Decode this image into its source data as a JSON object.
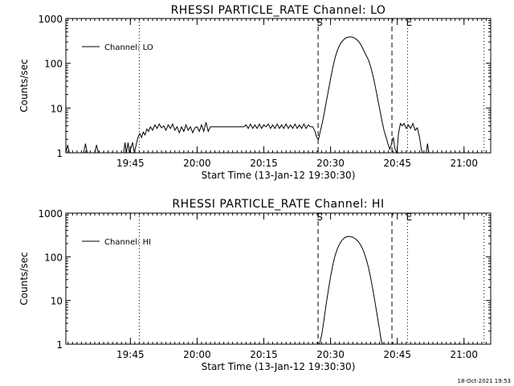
{
  "chart_data": [
    {
      "type": "line",
      "title": "RHESSI PARTICLE_RATE Channel: LO",
      "xlabel": "Start Time (13-Jan-12 19:30:30)",
      "ylabel": "Counts/sec",
      "yscale": "log",
      "ylim": [
        1,
        1000
      ],
      "ytick_labels": [
        "1",
        "10",
        "100",
        "1000"
      ],
      "xlim_minutes": [
        0,
        95.5
      ],
      "xtick_labels": [
        "19:45",
        "20:00",
        "20:15",
        "20:30",
        "20:45",
        "21:00"
      ],
      "legend": {
        "position": "top-left",
        "label": "Channel: LO"
      },
      "markers": [
        {
          "label": "S",
          "style": "dashed",
          "minute": 56.7
        },
        {
          "label": "",
          "style": "dashed",
          "minute": 73.3
        },
        {
          "label": "E",
          "style": "dotted",
          "minute": 76.8
        },
        {
          "label": "",
          "style": "dotted",
          "minute": 16.5
        },
        {
          "label": "",
          "style": "dotted",
          "minute": 94.0
        }
      ],
      "series": [
        {
          "name": "Channel: LO",
          "points": [
            [
              0.0,
              1
            ],
            [
              0.4,
              1.5
            ],
            [
              0.8,
              1
            ],
            [
              4.0,
              1
            ],
            [
              4.4,
              1.6
            ],
            [
              4.8,
              1
            ],
            [
              6.5,
              1
            ],
            [
              6.9,
              1.5
            ],
            [
              7.3,
              1
            ],
            [
              13.0,
              1
            ],
            [
              13.3,
              1.7
            ],
            [
              13.6,
              1
            ],
            [
              14.0,
              1.7
            ],
            [
              14.3,
              1
            ],
            [
              15.0,
              1.7
            ],
            [
              15.4,
              1
            ],
            [
              15.8,
              1.5
            ],
            [
              16.2,
              2.2
            ],
            [
              16.6,
              2.7
            ],
            [
              17.0,
              2.2
            ],
            [
              17.4,
              2.9
            ],
            [
              17.8,
              2.5
            ],
            [
              18.2,
              3.4
            ],
            [
              18.6,
              3.0
            ],
            [
              19.0,
              3.8
            ],
            [
              19.5,
              3.2
            ],
            [
              20.0,
              4.2
            ],
            [
              20.5,
              3.5
            ],
            [
              21.0,
              4.4
            ],
            [
              21.5,
              3.6
            ],
            [
              22.0,
              4.0
            ],
            [
              22.5,
              3.2
            ],
            [
              23.0,
              4.2
            ],
            [
              23.5,
              3.5
            ],
            [
              24.0,
              4.4
            ],
            [
              24.5,
              3.2
            ],
            [
              25.0,
              3.8
            ],
            [
              25.5,
              2.8
            ],
            [
              26.0,
              3.8
            ],
            [
              26.5,
              3.0
            ],
            [
              27.0,
              4.2
            ],
            [
              27.5,
              3.2
            ],
            [
              28.0,
              3.8
            ],
            [
              28.5,
              2.8
            ],
            [
              29.0,
              3.6
            ],
            [
              29.5,
              3.8
            ],
            [
              30.0,
              3.0
            ],
            [
              30.5,
              4.2
            ],
            [
              31.0,
              3.0
            ],
            [
              31.5,
              4.8
            ],
            [
              32.0,
              3.0
            ],
            [
              32.5,
              3.8
            ],
            [
              33.0,
              3.8
            ],
            [
              34.0,
              3.8
            ],
            [
              35.0,
              3.8
            ],
            [
              36.0,
              3.8
            ],
            [
              37.0,
              3.8
            ],
            [
              38.0,
              3.8
            ],
            [
              39.0,
              3.8
            ],
            [
              40.0,
              3.8
            ],
            [
              40.5,
              4.2
            ],
            [
              41.0,
              3.5
            ],
            [
              41.5,
              4.4
            ],
            [
              42.0,
              3.5
            ],
            [
              42.5,
              4.2
            ],
            [
              43.0,
              3.5
            ],
            [
              43.5,
              4.4
            ],
            [
              44.0,
              3.5
            ],
            [
              44.5,
              4.2
            ],
            [
              45.0,
              3.8
            ],
            [
              45.5,
              4.4
            ],
            [
              46.0,
              3.5
            ],
            [
              46.5,
              4.2
            ],
            [
              47.0,
              3.5
            ],
            [
              47.5,
              4.4
            ],
            [
              48.0,
              3.5
            ],
            [
              48.5,
              4.2
            ],
            [
              49.0,
              3.5
            ],
            [
              49.5,
              4.4
            ],
            [
              50.0,
              3.5
            ],
            [
              50.5,
              4.2
            ],
            [
              51.0,
              3.5
            ],
            [
              51.5,
              4.4
            ],
            [
              52.0,
              3.5
            ],
            [
              52.5,
              4.2
            ],
            [
              53.0,
              3.5
            ],
            [
              53.5,
              4.4
            ],
            [
              54.0,
              3.5
            ],
            [
              54.5,
              4.2
            ],
            [
              55.0,
              3.8
            ],
            [
              55.5,
              3.8
            ],
            [
              56.0,
              3.0
            ],
            [
              56.4,
              2.2
            ],
            [
              56.8,
              2.0
            ],
            [
              57.2,
              3.0
            ],
            [
              57.6,
              4.5
            ],
            [
              58.0,
              7
            ],
            [
              58.5,
              13
            ],
            [
              59.0,
              24
            ],
            [
              59.5,
              45
            ],
            [
              60.0,
              80
            ],
            [
              60.5,
              130
            ],
            [
              61.0,
              190
            ],
            [
              61.5,
              250
            ],
            [
              62.0,
              300
            ],
            [
              62.5,
              340
            ],
            [
              63.0,
              370
            ],
            [
              63.5,
              385
            ],
            [
              64.0,
              390
            ],
            [
              64.5,
              380
            ],
            [
              65.0,
              360
            ],
            [
              65.5,
              330
            ],
            [
              66.0,
              290
            ],
            [
              66.5,
              240
            ],
            [
              67.0,
              190
            ],
            [
              67.5,
              150
            ],
            [
              68.0,
              120
            ],
            [
              68.5,
              85
            ],
            [
              69.0,
              55
            ],
            [
              69.5,
              32
            ],
            [
              70.0,
              18
            ],
            [
              70.5,
              10
            ],
            [
              71.0,
              5.5
            ],
            [
              71.5,
              3.2
            ],
            [
              72.0,
              2.2
            ],
            [
              72.4,
              1.6
            ],
            [
              72.8,
              1.2
            ],
            [
              73.2,
              1.6
            ],
            [
              73.6,
              2.2
            ],
            [
              74.0,
              1.2
            ],
            [
              74.4,
              1.0
            ],
            [
              74.8,
              2.8
            ],
            [
              75.2,
              4.5
            ],
            [
              75.6,
              4.0
            ],
            [
              76.0,
              4.5
            ],
            [
              76.5,
              3.5
            ],
            [
              77.0,
              4.2
            ],
            [
              77.5,
              3.5
            ],
            [
              78.0,
              4.5
            ],
            [
              78.5,
              3.2
            ],
            [
              79.0,
              3.6
            ],
            [
              79.5,
              2.2
            ],
            [
              79.9,
              1.2
            ],
            [
              80.2,
              1
            ],
            [
              81.0,
              1
            ],
            [
              81.3,
              1.6
            ],
            [
              81.6,
              1
            ],
            [
              83.0,
              1
            ]
          ]
        }
      ]
    },
    {
      "type": "line",
      "title": "RHESSI PARTICLE_RATE Channel: HI",
      "xlabel": "Start Time (13-Jan-12 19:30:30)",
      "ylabel": "Counts/sec",
      "yscale": "log",
      "ylim": [
        1,
        1000
      ],
      "ytick_labels": [
        "1",
        "10",
        "100",
        "1000"
      ],
      "xlim_minutes": [
        0,
        95.5
      ],
      "xtick_labels": [
        "19:45",
        "20:00",
        "20:15",
        "20:30",
        "20:45",
        "21:00"
      ],
      "legend": {
        "position": "top-left",
        "label": "Channel: HI"
      },
      "markers": [
        {
          "label": "S",
          "style": "dashed",
          "minute": 56.7
        },
        {
          "label": "",
          "style": "dashed",
          "minute": 73.3
        },
        {
          "label": "E",
          "style": "dotted",
          "minute": 76.8
        },
        {
          "label": "",
          "style": "dotted",
          "minute": 16.5
        },
        {
          "label": "",
          "style": "dotted",
          "minute": 94.0
        }
      ],
      "series": [
        {
          "name": "Channel: HI",
          "points": [
            [
              57.0,
              1
            ],
            [
              57.5,
              1.6
            ],
            [
              58.0,
              3.5
            ],
            [
              58.5,
              8
            ],
            [
              59.0,
              17
            ],
            [
              59.5,
              35
            ],
            [
              60.0,
              65
            ],
            [
              60.5,
              105
            ],
            [
              61.0,
              150
            ],
            [
              61.5,
              195
            ],
            [
              62.0,
              235
            ],
            [
              62.5,
              265
            ],
            [
              63.0,
              285
            ],
            [
              63.5,
              292
            ],
            [
              64.0,
              290
            ],
            [
              64.5,
              280
            ],
            [
              65.0,
              262
            ],
            [
              65.5,
              238
            ],
            [
              66.0,
              205
            ],
            [
              66.5,
              168
            ],
            [
              67.0,
              128
            ],
            [
              67.5,
              90
            ],
            [
              68.0,
              58
            ],
            [
              68.5,
              34
            ],
            [
              69.0,
              18
            ],
            [
              69.5,
              9
            ],
            [
              70.0,
              4.5
            ],
            [
              70.5,
              2.2
            ],
            [
              70.9,
              1.2
            ],
            [
              71.2,
              1
            ]
          ]
        }
      ]
    }
  ],
  "footer": {
    "timestamp": "18-Oct-2021 19:53"
  }
}
